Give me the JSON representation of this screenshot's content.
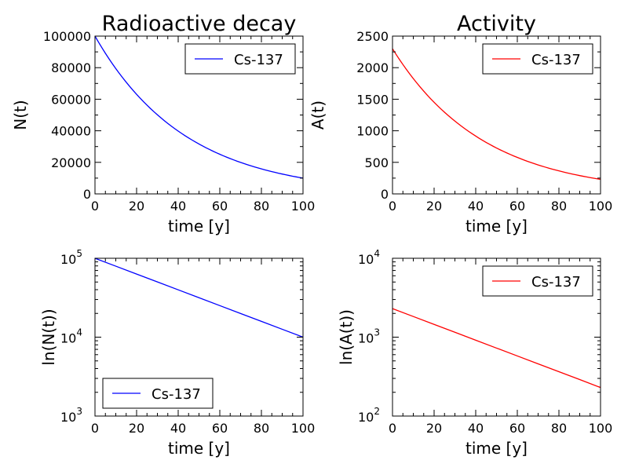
{
  "chart_data": [
    {
      "type": "line",
      "title": "Radioactive decay",
      "xlabel": "time [y]",
      "ylabel": "N(t)",
      "xlim": [
        0,
        100
      ],
      "ylim": [
        0,
        100000
      ],
      "yscale": "linear",
      "xticks": [
        0,
        20,
        40,
        60,
        80,
        100
      ],
      "yticks": [
        0,
        20000,
        40000,
        60000,
        80000,
        100000
      ],
      "legend_position": "upper right",
      "series": [
        {
          "name": "Cs-137",
          "color": "#0000ff",
          "x": [
            0,
            10,
            20,
            30,
            40,
            50,
            60,
            70,
            80,
            90,
            100
          ],
          "y": [
            100000,
            79430,
            63100,
            50120,
            39810,
            31620,
            25120,
            19950,
            15850,
            12590,
            10000
          ]
        }
      ]
    },
    {
      "type": "line",
      "title": "Activity",
      "xlabel": "time [y]",
      "ylabel": "A(t)",
      "xlim": [
        0,
        100
      ],
      "ylim": [
        0,
        2500
      ],
      "yscale": "linear",
      "xticks": [
        0,
        20,
        40,
        60,
        80,
        100
      ],
      "yticks": [
        0,
        500,
        1000,
        1500,
        2000,
        2500
      ],
      "legend_position": "upper right",
      "series": [
        {
          "name": "Cs-137",
          "color": "#ff0000",
          "x": [
            0,
            10,
            20,
            30,
            40,
            50,
            60,
            70,
            80,
            90,
            100
          ],
          "y": [
            2300,
            1827,
            1451,
            1153,
            916,
            727,
            578,
            459,
            365,
            290,
            230
          ]
        }
      ]
    },
    {
      "type": "line",
      "title": "",
      "xlabel": "time [y]",
      "ylabel": "ln(N(t))",
      "xlim": [
        0,
        100
      ],
      "ylim": [
        1000,
        100000
      ],
      "yscale": "log",
      "xticks": [
        0,
        20,
        40,
        60,
        80,
        100
      ],
      "yticks": [
        1000,
        10000,
        100000
      ],
      "ytick_labels": [
        {
          "base": "10",
          "exp": "3"
        },
        {
          "base": "10",
          "exp": "4"
        },
        {
          "base": "10",
          "exp": "5"
        }
      ],
      "legend_position": "lower left",
      "series": [
        {
          "name": "Cs-137",
          "color": "#0000ff",
          "x": [
            0,
            10,
            20,
            30,
            40,
            50,
            60,
            70,
            80,
            90,
            100
          ],
          "y": [
            100000,
            79430,
            63100,
            50120,
            39810,
            31620,
            25120,
            19950,
            15850,
            12590,
            10000
          ]
        }
      ]
    },
    {
      "type": "line",
      "title": "",
      "xlabel": "time [y]",
      "ylabel": "ln(A(t))",
      "xlim": [
        0,
        100
      ],
      "ylim": [
        100,
        10000
      ],
      "yscale": "log",
      "xticks": [
        0,
        20,
        40,
        60,
        80,
        100
      ],
      "yticks": [
        100,
        1000,
        10000
      ],
      "ytick_labels": [
        {
          "base": "10",
          "exp": "2"
        },
        {
          "base": "10",
          "exp": "3"
        },
        {
          "base": "10",
          "exp": "4"
        }
      ],
      "legend_position": "upper right",
      "series": [
        {
          "name": "Cs-137",
          "color": "#ff0000",
          "x": [
            0,
            10,
            20,
            30,
            40,
            50,
            60,
            70,
            80,
            90,
            100
          ],
          "y": [
            2300,
            1827,
            1451,
            1153,
            916,
            727,
            578,
            459,
            365,
            290,
            230
          ]
        }
      ]
    }
  ]
}
